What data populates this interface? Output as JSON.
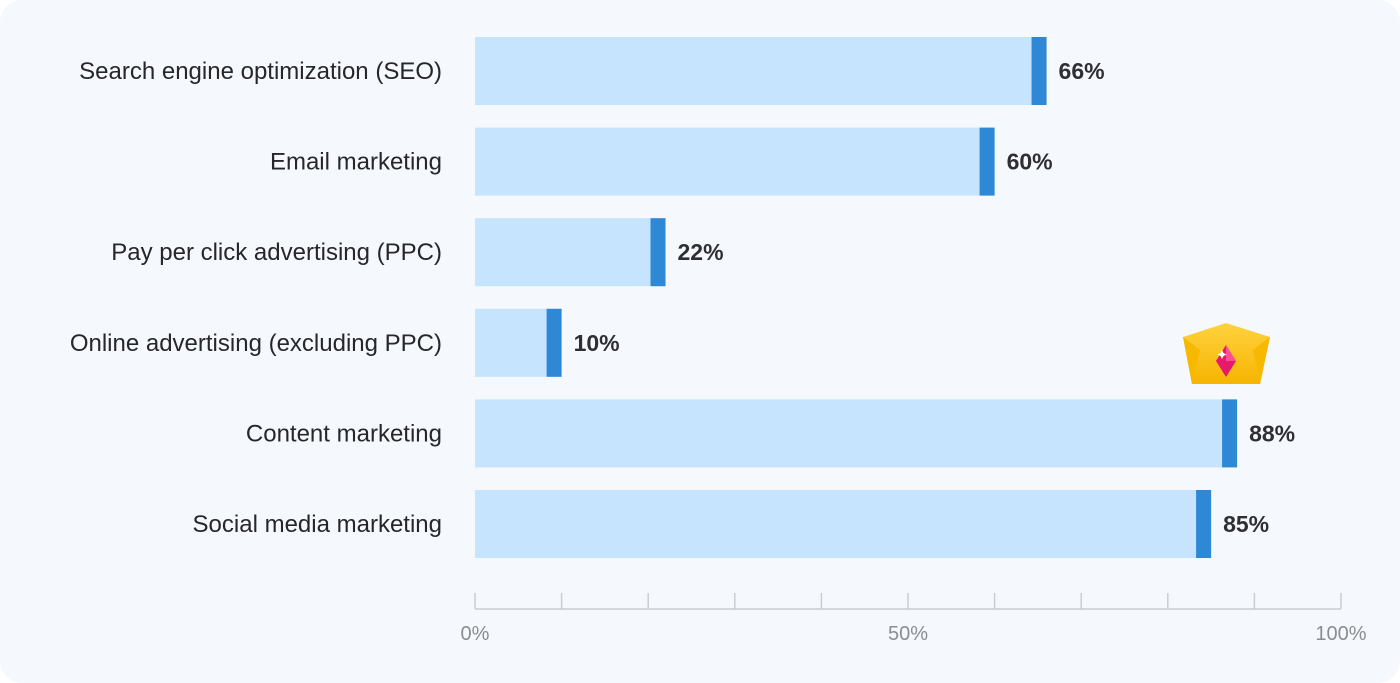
{
  "chart_data": {
    "type": "bar",
    "orientation": "horizontal",
    "categories": [
      "Search engine optimization (SEO)",
      "Email marketing",
      "Pay per click advertising (PPC)",
      "Online advertising (excluding PPC)",
      "Content marketing",
      "Social media marketing"
    ],
    "values": [
      66,
      60,
      22,
      10,
      88,
      85
    ],
    "value_labels": [
      "66%",
      "60%",
      "22%",
      "10%",
      "88%",
      "85%"
    ],
    "xlim": [
      0,
      100
    ],
    "x_ticks": [
      0,
      10,
      20,
      30,
      40,
      50,
      60,
      70,
      80,
      90,
      100
    ],
    "x_tick_labels": [
      {
        "value": 0,
        "label": "0%"
      },
      {
        "value": 50,
        "label": "50%"
      },
      {
        "value": 100,
        "label": "100%"
      }
    ],
    "highlight": {
      "category": "Content marketing",
      "icon": "crown-icon"
    },
    "grid": false,
    "colors": {
      "bar_fill": "#c6e4fd",
      "bar_cap": "#2f88d6",
      "axis": "#c9cdd2",
      "background": "#f5f9fe"
    }
  }
}
